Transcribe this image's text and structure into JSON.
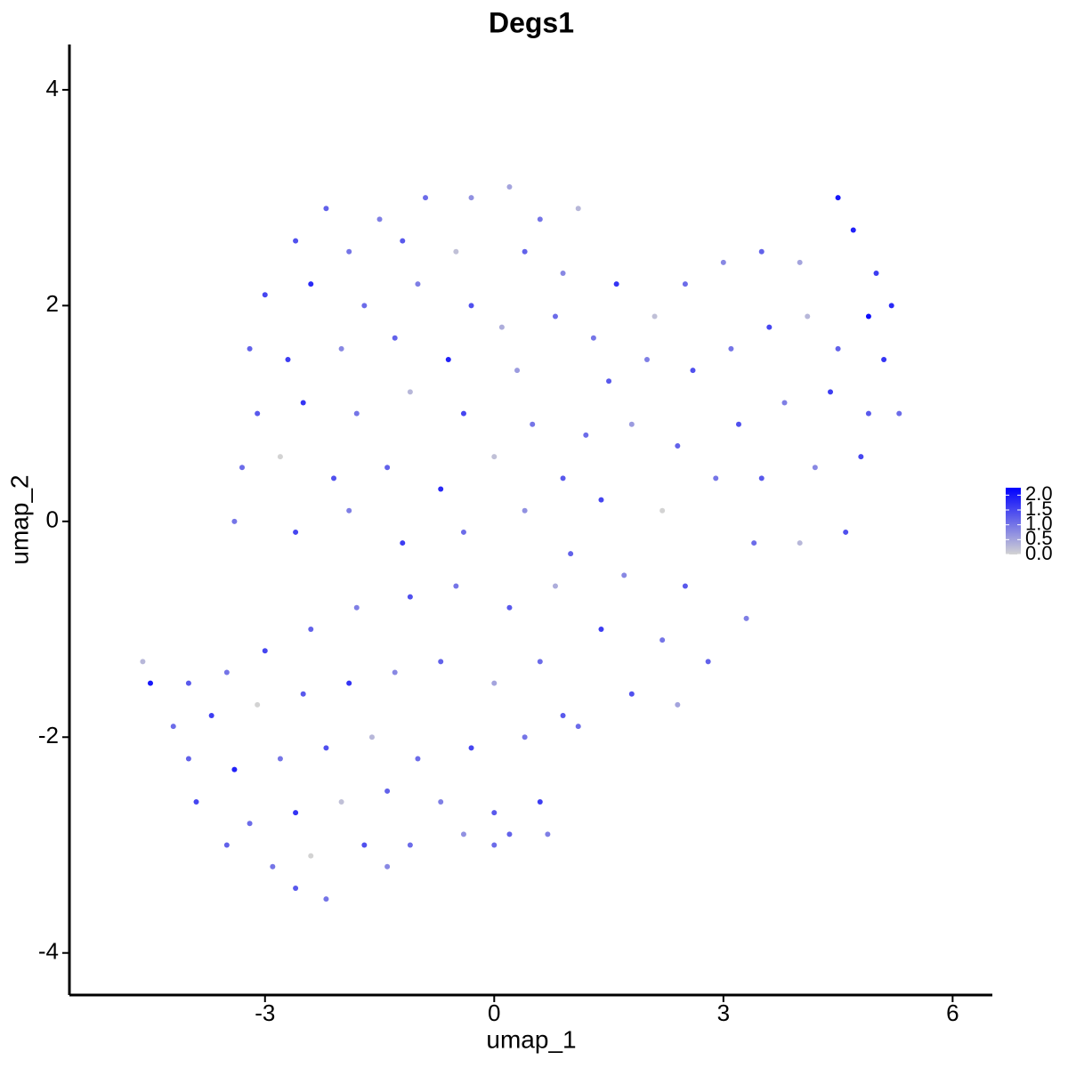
{
  "chart_data": {
    "type": "scatter",
    "title": "Degs1",
    "x_label": "umap_1",
    "y_label": "umap_2",
    "xlim": [
      -5.56,
      6.52
    ],
    "ylim": [
      -4.39,
      4.42
    ],
    "xticks": [
      -3,
      0,
      3,
      6
    ],
    "yticks": [
      -4,
      -2,
      0,
      2,
      4
    ],
    "color_low": "#d3d3d3",
    "color_high": "#0000ff",
    "colorlim": [
      0,
      2.25
    ],
    "colorticks": [
      {
        "value": 0,
        "label": "0.0"
      },
      {
        "value": 0.5,
        "label": "0.5"
      },
      {
        "value": 1,
        "label": "1.0"
      },
      {
        "value": 1.5,
        "label": "1.5"
      },
      {
        "value": 2,
        "label": "2.0"
      }
    ],
    "x": [
      -2.2,
      -1.5,
      -0.9,
      -0.3,
      0.2,
      0.6,
      1.1,
      -2.6,
      -1.9,
      -1.2,
      -0.5,
      0.4,
      0.9,
      -3.0,
      -2.4,
      -1.7,
      -1.0,
      -0.3,
      0.1,
      0.8,
      -3.2,
      -2.7,
      -2.0,
      -1.3,
      -0.6,
      0.3,
      -3.1,
      -2.5,
      -1.8,
      -1.1,
      -0.4,
      0.5,
      -3.3,
      -2.8,
      -2.1,
      -1.4,
      -0.7,
      0.0,
      0.9,
      -3.4,
      -2.6,
      -1.9,
      -1.2,
      -0.4,
      0.4,
      1.3,
      1.6,
      2.1,
      2.5,
      3.0,
      3.5,
      4.0,
      4.5,
      4.7,
      5.0,
      5.2,
      4.9,
      1.5,
      2.0,
      2.6,
      3.1,
      3.6,
      4.1,
      4.5,
      5.1,
      1.2,
      1.8,
      2.4,
      3.2,
      3.8,
      4.4,
      4.9,
      5.3,
      1.4,
      2.2,
      2.9,
      3.5,
      4.2,
      4.8,
      1.0,
      1.7,
      2.5,
      3.4,
      4.0,
      4.6,
      1.4,
      2.2,
      2.8,
      3.3,
      1.8,
      2.4,
      1.1,
      -4.6,
      -4.5,
      -4.0,
      -3.5,
      -3.0,
      -2.4,
      -1.8,
      -1.1,
      -0.5,
      0.2,
      0.8,
      -4.2,
      -3.7,
      -3.1,
      -2.5,
      -1.9,
      -1.3,
      -0.7,
      0.0,
      0.6,
      -4.0,
      -3.4,
      -2.8,
      -2.2,
      -1.6,
      -1.0,
      -0.3,
      0.4,
      0.9,
      -3.9,
      -3.2,
      -2.6,
      -2.0,
      -1.4,
      -0.7,
      0.0,
      0.6,
      -3.5,
      -2.9,
      -2.4,
      -1.7,
      -1.1,
      -0.4,
      0.2,
      0.7,
      -2.6,
      -2.2,
      -1.4,
      0.0
    ],
    "y": [
      2.9,
      2.8,
      3.0,
      3.0,
      3.1,
      2.8,
      2.9,
      2.6,
      2.5,
      2.6,
      2.5,
      2.5,
      2.3,
      2.1,
      2.2,
      2.0,
      2.2,
      2.0,
      1.8,
      1.9,
      1.6,
      1.5,
      1.6,
      1.7,
      1.5,
      1.4,
      1.0,
      1.1,
      1.0,
      1.2,
      1.0,
      0.9,
      0.5,
      0.6,
      0.4,
      0.5,
      0.3,
      0.6,
      0.4,
      0.0,
      -0.1,
      0.1,
      -0.2,
      -0.1,
      0.1,
      1.7,
      2.2,
      1.9,
      2.2,
      2.4,
      2.5,
      2.4,
      3.0,
      2.7,
      2.3,
      2.0,
      1.9,
      1.3,
      1.5,
      1.4,
      1.6,
      1.8,
      1.9,
      1.6,
      1.5,
      0.8,
      0.9,
      0.7,
      0.9,
      1.1,
      1.2,
      1.0,
      1.0,
      0.2,
      0.1,
      0.4,
      0.4,
      0.5,
      0.6,
      -0.3,
      -0.5,
      -0.6,
      -0.2,
      -0.2,
      -0.1,
      -1.0,
      -1.1,
      -1.3,
      -0.9,
      -1.6,
      -1.7,
      -1.9,
      -1.3,
      -1.5,
      -1.5,
      -1.4,
      -1.2,
      -1.0,
      -0.8,
      -0.7,
      -0.6,
      -0.8,
      -0.6,
      -1.9,
      -1.8,
      -1.7,
      -1.6,
      -1.5,
      -1.4,
      -1.3,
      -1.5,
      -1.3,
      -2.2,
      -2.3,
      -2.2,
      -2.1,
      -2.0,
      -2.2,
      -2.1,
      -2.0,
      -1.8,
      -2.6,
      -2.8,
      -2.7,
      -2.6,
      -2.5,
      -2.6,
      -2.7,
      -2.6,
      -3.0,
      -3.2,
      -3.1,
      -3.0,
      -3.0,
      -2.9,
      -2.9,
      -2.9,
      -3.4,
      -3.5,
      -3.2,
      -3.0
    ],
    "expression": [
      1.2,
      0.9,
      1.1,
      0.7,
      0.5,
      1.0,
      0.3,
      1.4,
      1.0,
      1.3,
      0.2,
      1.2,
      0.8,
      1.5,
      1.8,
      1.1,
      0.9,
      1.4,
      0.4,
      1.1,
      1.2,
      1.6,
      0.8,
      1.2,
      1.9,
      0.6,
      1.3,
      1.7,
      1.0,
      0.3,
      1.5,
      1.0,
      1.1,
      0.0,
      1.4,
      1.2,
      1.8,
      0.2,
      1.3,
      1.0,
      1.5,
      0.9,
      1.6,
      1.1,
      0.7,
      1.0,
      1.7,
      0.2,
      1.1,
      0.8,
      1.2,
      0.5,
      2.0,
      1.9,
      1.6,
      1.8,
      2.1,
      1.3,
      0.9,
      1.4,
      1.0,
      1.5,
      0.3,
      1.2,
      1.7,
      1.1,
      0.6,
      1.2,
      1.4,
      0.9,
      1.6,
      1.3,
      1.1,
      1.5,
      0.0,
      1.0,
      1.3,
      0.8,
      1.5,
      1.2,
      0.8,
      1.3,
      1.1,
      0.3,
      1.4,
      1.6,
      1.0,
      1.2,
      0.9,
      1.4,
      0.5,
      1.1,
      0.3,
      2.0,
      1.3,
      1.0,
      1.5,
      1.2,
      0.9,
      1.4,
      1.0,
      1.3,
      0.4,
      1.1,
      1.6,
      0.0,
      1.3,
      1.7,
      0.8,
      1.2,
      0.5,
      1.1,
      1.2,
      1.9,
      1.0,
      1.4,
      0.3,
      1.1,
      1.5,
      1.0,
      1.3,
      1.5,
      1.1,
      1.7,
      0.2,
      1.2,
      0.9,
      1.3,
      1.6,
      1.2,
      1.0,
      0.0,
      1.4,
      1.1,
      0.7,
      1.2,
      0.9,
      1.3,
      1.0,
      0.8,
      1.1
    ]
  }
}
